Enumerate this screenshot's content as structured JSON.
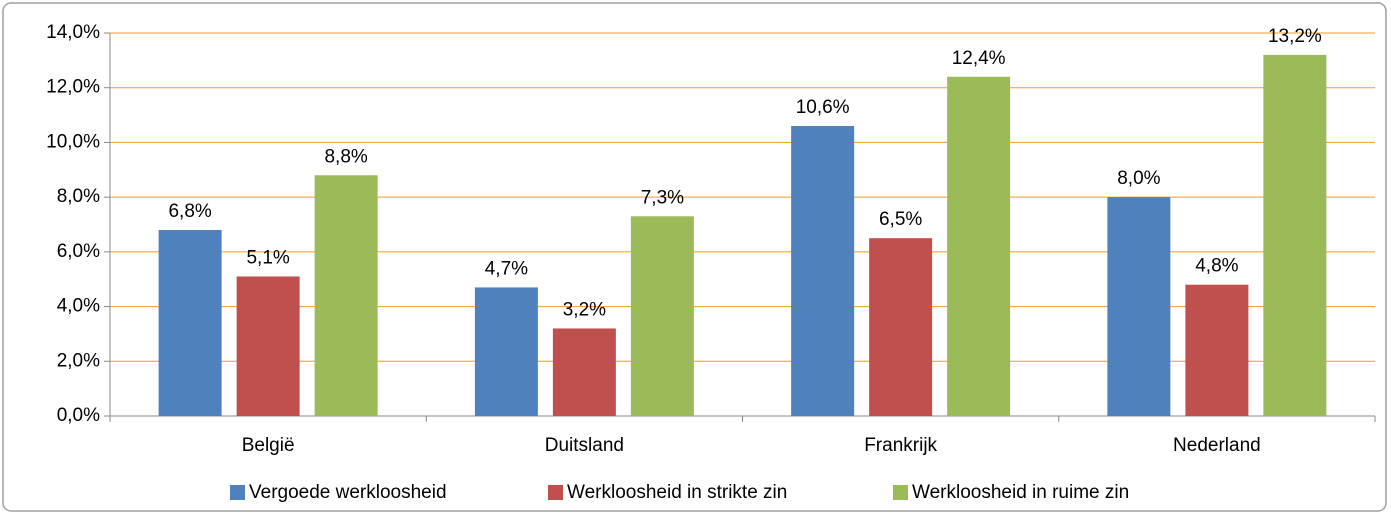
{
  "chart_data": {
    "type": "bar",
    "categories": [
      "België",
      "Duitsland",
      "Frankrijk",
      "Nederland"
    ],
    "series": [
      {
        "name": "Vergoede werkloosheid",
        "color": "#4f81bd",
        "values": [
          6.8,
          4.7,
          10.6,
          8.0
        ],
        "value_labels": [
          "6,8%",
          "4,7%",
          "10,6%",
          "8,0%"
        ]
      },
      {
        "name": "Werkloosheid in strikte zin",
        "color": "#c0504d",
        "values": [
          5.1,
          3.2,
          6.5,
          4.8
        ],
        "value_labels": [
          "5,1%",
          "3,2%",
          "6,5%",
          "4,8%"
        ]
      },
      {
        "name": "Werkloosheid in ruime zin",
        "color": "#9bbb59",
        "values": [
          8.8,
          7.3,
          12.4,
          13.2
        ],
        "value_labels": [
          "8,8%",
          "7,3%",
          "12,4%",
          "13,2%"
        ]
      }
    ],
    "ylim": [
      0,
      14
    ],
    "yticks": [
      {
        "value": 0,
        "label": "0,0%"
      },
      {
        "value": 2,
        "label": "2,0%"
      },
      {
        "value": 4,
        "label": "4,0%"
      },
      {
        "value": 6,
        "label": "6,0%"
      },
      {
        "value": 8,
        "label": "8,0%"
      },
      {
        "value": 10,
        "label": "10,0%"
      },
      {
        "value": 12,
        "label": "12,0%"
      },
      {
        "value": 14,
        "label": "14,0%"
      }
    ],
    "grid": true,
    "legend": "bottom"
  }
}
